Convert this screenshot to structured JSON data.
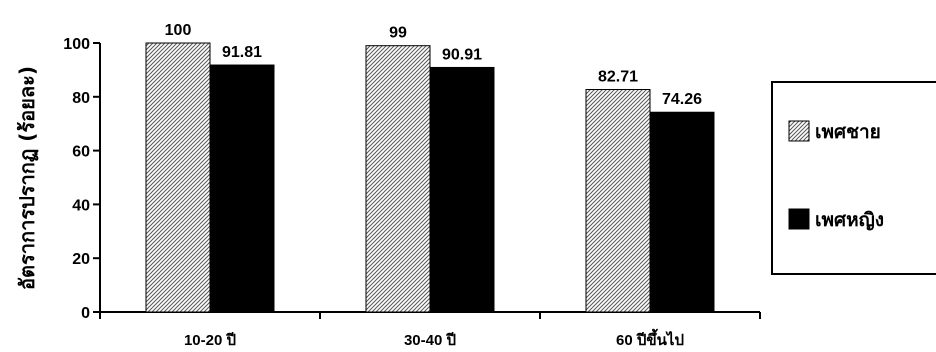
{
  "chart_data": {
    "type": "bar",
    "title": "",
    "xlabel": "",
    "ylabel": "อัตราการปรากฏ (ร้อยละ)",
    "ylim": [
      0,
      100
    ],
    "yticks": [
      0,
      20,
      40,
      60,
      80,
      100
    ],
    "categories": [
      "10-20 ปี",
      "30-40 ปี",
      "60 ปีขึ้นไป"
    ],
    "series": [
      {
        "name": "เพศชาย",
        "values": [
          100,
          99,
          82.71
        ],
        "fill": "hatch",
        "color": "#d8d8d8"
      },
      {
        "name": "เพศหญิง",
        "values": [
          91.81,
          90.91,
          74.26
        ],
        "fill": "solid",
        "color": "#000000"
      }
    ],
    "data_labels": [
      [
        "100",
        "99",
        "82.71"
      ],
      [
        "91.81",
        "90.91",
        "74.26"
      ]
    ],
    "legend_position": "right",
    "grid": false
  }
}
